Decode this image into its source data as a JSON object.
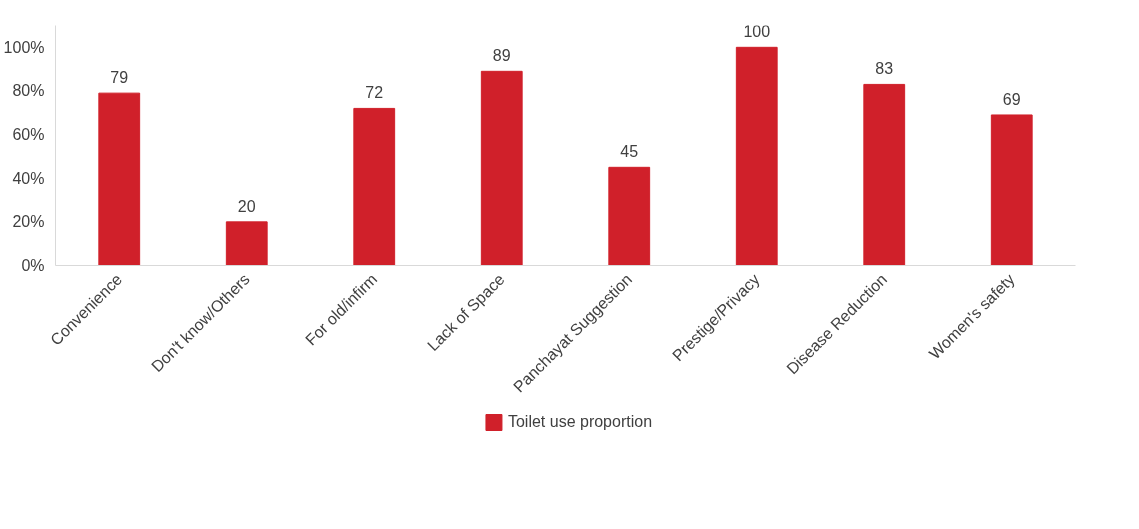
{
  "chart_data": {
    "type": "bar",
    "categories": [
      "Convenience",
      "Don't know/Others",
      "For old/infirm",
      "Lack of Space",
      "Panchayat Suggestion",
      "Prestige/Privacy",
      "Disease Reduction",
      "Women's safety"
    ],
    "series": [
      {
        "name": "Toilet use proportion",
        "color": "#d0202a",
        "values": [
          79,
          20,
          72,
          89,
          45,
          100,
          83,
          69
        ]
      }
    ],
    "ylim": [
      0,
      110
    ],
    "yticks": [
      {
        "value": 0,
        "label": "0%"
      },
      {
        "value": 20,
        "label": "20%"
      },
      {
        "value": 40,
        "label": "40%"
      },
      {
        "value": 60,
        "label": "60%"
      },
      {
        "value": 80,
        "label": "80%"
      },
      {
        "value": 100,
        "label": "100%"
      }
    ],
    "data_labels": true,
    "grid": false,
    "legend": "bottom"
  }
}
